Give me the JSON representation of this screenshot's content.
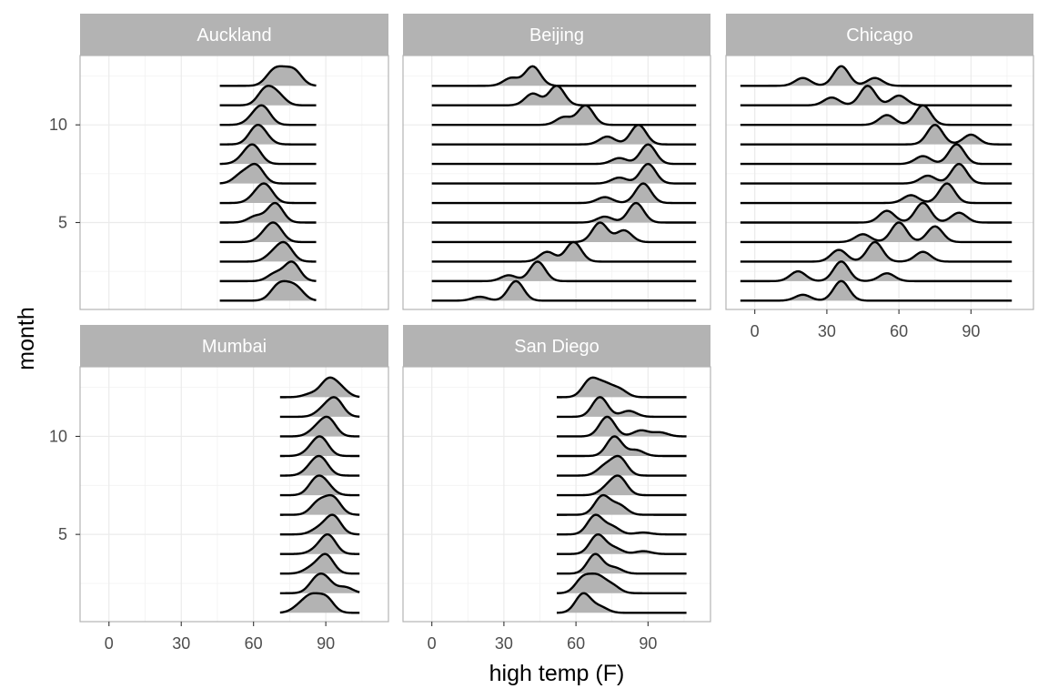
{
  "chart_data": {
    "type": "ridgeline",
    "xlabel": "high temp (F)",
    "ylabel": "month",
    "x_ticks": [
      0,
      30,
      60,
      90
    ],
    "xlim": [
      -12,
      116
    ],
    "y_ticks": [
      5,
      10
    ],
    "ylim": [
      0.55,
      13.55
    ],
    "facet_layout": "wrap, 3 columns, 2 rows",
    "grid": true,
    "colors": {
      "fill": "#b3b3b3",
      "line": "#000000",
      "strip": "#b3b3b3",
      "strip_text": "#ffffff",
      "panel_border": "#b3b3b3",
      "grid": "#ebebeb"
    },
    "panels": [
      {
        "city": "Auckland",
        "range": [
          46,
          86
        ],
        "months": [
          [
            [
              70,
              0.6
            ],
            [
              74,
              0.4
            ],
            [
              78,
              0.5
            ]
          ],
          [
            [
              76,
              1.0
            ],
            [
              69,
              0.4
            ]
          ],
          [
            [
              73,
              1.0
            ],
            [
              68,
              0.4
            ]
          ],
          [
            [
              69,
              0.9
            ],
            [
              65,
              0.4
            ]
          ],
          [
            [
              69,
              0.9
            ],
            [
              61,
              0.3
            ]
          ],
          [
            [
              65,
              0.8
            ],
            [
              61,
              0.3
            ]
          ],
          [
            [
              61,
              1.0
            ],
            [
              55,
              0.5
            ]
          ],
          [
            [
              60,
              1.0
            ],
            [
              56,
              0.3
            ]
          ],
          [
            [
              61,
              0.8
            ],
            [
              64,
              0.4
            ]
          ],
          [
            [
              64,
              0.8
            ],
            [
              60,
              0.3
            ]
          ],
          [
            [
              65,
              0.8
            ],
            [
              70,
              0.5
            ]
          ],
          [
            [
              68,
              0.6
            ],
            [
              72,
              0.5
            ],
            [
              77,
              0.7
            ]
          ]
        ]
      },
      {
        "city": "Beijing",
        "range": [
          0,
          110
        ],
        "months": [
          [
            [
              35,
              1.0
            ],
            [
              20,
              0.2
            ]
          ],
          [
            [
              44,
              1.0
            ],
            [
              32,
              0.3
            ]
          ],
          [
            [
              59,
              1.0
            ],
            [
              48,
              0.5
            ]
          ],
          [
            [
              70,
              1.0
            ],
            [
              80,
              0.6
            ]
          ],
          [
            [
              85,
              1.0
            ],
            [
              72,
              0.3
            ]
          ],
          [
            [
              88,
              1.0
            ],
            [
              72,
              0.3
            ]
          ],
          [
            [
              90,
              1.0
            ],
            [
              78,
              0.3
            ]
          ],
          [
            [
              90,
              1.0
            ],
            [
              78,
              0.3
            ]
          ],
          [
            [
              86,
              1.0
            ],
            [
              73,
              0.4
            ]
          ],
          [
            [
              64,
              1.0
            ],
            [
              55,
              0.4
            ]
          ],
          [
            [
              52,
              1.0
            ],
            [
              42,
              0.6
            ]
          ],
          [
            [
              42,
              1.0
            ],
            [
              33,
              0.4
            ]
          ]
        ]
      },
      {
        "city": "Chicago",
        "range": [
          -6,
          107
        ],
        "months": [
          [
            [
              36,
              1.0
            ],
            [
              20,
              0.3
            ]
          ],
          [
            [
              36,
              1.0
            ],
            [
              18,
              0.5
            ],
            [
              55,
              0.4
            ]
          ],
          [
            [
              50,
              1.0
            ],
            [
              35,
              0.6
            ],
            [
              70,
              0.5
            ]
          ],
          [
            [
              60,
              1.0
            ],
            [
              75,
              0.8
            ],
            [
              45,
              0.4
            ]
          ],
          [
            [
              70,
              1.0
            ],
            [
              55,
              0.6
            ],
            [
              85,
              0.5
            ]
          ],
          [
            [
              80,
              1.0
            ],
            [
              65,
              0.4
            ]
          ],
          [
            [
              85,
              1.0
            ],
            [
              72,
              0.4
            ]
          ],
          [
            [
              84,
              1.0
            ],
            [
              70,
              0.4
            ]
          ],
          [
            [
              75,
              1.0
            ],
            [
              90,
              0.5
            ]
          ],
          [
            [
              70,
              1.0
            ],
            [
              55,
              0.5
            ]
          ],
          [
            [
              47,
              1.0
            ],
            [
              32,
              0.4
            ],
            [
              60,
              0.5
            ]
          ],
          [
            [
              36,
              1.0
            ],
            [
              20,
              0.4
            ],
            [
              50,
              0.4
            ]
          ]
        ]
      },
      {
        "city": "Mumbai",
        "range": [
          71,
          104
        ],
        "months": [
          [
            [
              84,
              0.5
            ],
            [
              90,
              0.5
            ],
            [
              79,
              0.2
            ]
          ],
          [
            [
              86,
              0.6
            ],
            [
              90,
              0.6
            ],
            [
              98,
              0.3
            ]
          ],
          [
            [
              90,
              1.0
            ],
            [
              84,
              0.3
            ]
          ],
          [
            [
              91,
              1.0
            ],
            [
              86,
              0.2
            ]
          ],
          [
            [
              93,
              1.0
            ],
            [
              87,
              0.3
            ]
          ],
          [
            [
              93,
              0.8
            ],
            [
              87,
              0.6
            ]
          ],
          [
            [
              86,
              0.8
            ],
            [
              90,
              0.5
            ]
          ],
          [
            [
              88,
              0.9
            ],
            [
              84,
              0.4
            ]
          ],
          [
            [
              88,
              1.0
            ],
            [
              84,
              0.3
            ]
          ],
          [
            [
              91,
              1.0
            ],
            [
              86,
              0.4
            ]
          ],
          [
            [
              94,
              1.0
            ],
            [
              89,
              0.4
            ]
          ],
          [
            [
              91,
              1.0
            ],
            [
              96,
              0.5
            ],
            [
              84,
              0.2
            ]
          ]
        ]
      },
      {
        "city": "San Diego",
        "range": [
          52,
          106
        ],
        "months": [
          [
            [
              63,
              1.0
            ],
            [
              70,
              0.3
            ]
          ],
          [
            [
              63,
              0.6
            ],
            [
              69,
              0.6
            ],
            [
              75,
              0.3
            ]
          ],
          [
            [
              68,
              1.0
            ],
            [
              76,
              0.3
            ]
          ],
          [
            [
              69,
              1.0
            ],
            [
              76,
              0.3
            ],
            [
              88,
              0.15
            ]
          ],
          [
            [
              68,
              1.0
            ],
            [
              75,
              0.4
            ],
            [
              88,
              0.1
            ]
          ],
          [
            [
              71,
              1.0
            ],
            [
              78,
              0.5
            ]
          ],
          [
            [
              78,
              1.0
            ],
            [
              73,
              0.4
            ]
          ],
          [
            [
              78,
              1.0
            ],
            [
              72,
              0.5
            ]
          ],
          [
            [
              76,
              1.0
            ],
            [
              85,
              0.3
            ]
          ],
          [
            [
              73,
              1.0
            ],
            [
              87,
              0.3
            ],
            [
              95,
              0.2
            ]
          ],
          [
            [
              70,
              1.0
            ],
            [
              82,
              0.3
            ]
          ],
          [
            [
              66,
              0.9
            ],
            [
              72,
              0.6
            ],
            [
              78,
              0.4
            ]
          ]
        ]
      }
    ]
  }
}
